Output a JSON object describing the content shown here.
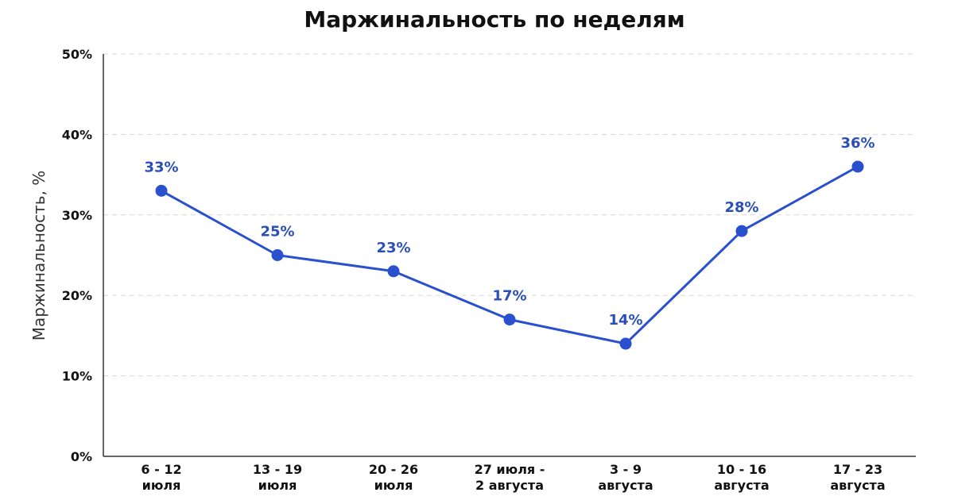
{
  "chart_data": {
    "type": "line",
    "title": "Маржинальность по неделям",
    "xlabel": "",
    "ylabel": "Маржинальность, %",
    "categories": [
      [
        "6 - 12",
        "июля"
      ],
      [
        "13 - 19",
        "июля"
      ],
      [
        "20 - 26",
        "июля"
      ],
      [
        "27 июля -",
        "2 августа"
      ],
      [
        "3 - 9",
        "августа"
      ],
      [
        "10 - 16",
        "августа"
      ],
      [
        "17 - 23",
        "августа"
      ]
    ],
    "series": [
      {
        "values": [
          33,
          25,
          23,
          17,
          14,
          28,
          36
        ]
      }
    ],
    "data_labels": [
      "33%",
      "25%",
      "23%",
      "17%",
      "14%",
      "28%",
      "36%"
    ],
    "ylim": [
      0,
      50
    ],
    "yticks": [
      0,
      10,
      20,
      30,
      40,
      50
    ],
    "ytick_labels": [
      "0%",
      "10%",
      "20%",
      "30%",
      "40%",
      "50%"
    ],
    "grid": true,
    "legend": "none",
    "colors": {
      "line": "#2a4fcf",
      "label": "#2a50b8"
    }
  }
}
